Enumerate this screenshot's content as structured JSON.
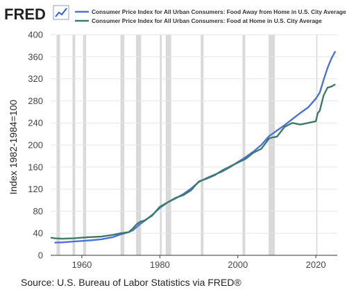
{
  "brand": {
    "logo_text": "FRED",
    "logo_icon": "trend-line-icon"
  },
  "source": "Source: U.S. Bureau of Labor Statistics via FRED®",
  "chart_data": {
    "type": "line",
    "ylabel": "Index 1982-1984=100",
    "xlabel": "",
    "ylim": [
      0,
      400
    ],
    "xlim": [
      1952,
      2025.5
    ],
    "yticks": [
      "0",
      "40",
      "80",
      "120",
      "160",
      "200",
      "240",
      "280",
      "320",
      "360",
      "400"
    ],
    "xticks": [
      "1960",
      "1980",
      "2000",
      "2020"
    ],
    "grid": true,
    "legend_position": "top",
    "recession_shading": "gray vertical bands",
    "recessions": [
      [
        1953.5,
        1954.4
      ],
      [
        1957.6,
        1958.3
      ],
      [
        1960.3,
        1961.1
      ],
      [
        1969.9,
        1970.9
      ],
      [
        1973.9,
        1975.2
      ],
      [
        1980.0,
        1980.5
      ],
      [
        1981.5,
        1982.9
      ],
      [
        1990.5,
        1991.2
      ],
      [
        2001.2,
        2001.9
      ],
      [
        2007.9,
        2009.5
      ],
      [
        2020.1,
        2020.4
      ]
    ],
    "series": [
      {
        "name": "Consumer Price Index for All Urban Consumers: Food Away from Home in U.S. City Average",
        "color": "#4a72d4",
        "x": [
          1953,
          1955,
          1958,
          1960,
          1962,
          1965,
          1968,
          1970,
          1972,
          1973,
          1974,
          1975,
          1976,
          1978,
          1980,
          1982,
          1984,
          1986,
          1988,
          1990,
          1992,
          1994,
          1996,
          1998,
          2000,
          2002,
          2004,
          2006,
          2008,
          2010,
          2012,
          2014,
          2016,
          2018,
          2019,
          2020,
          2021,
          2022,
          2023,
          2024,
          2025
        ],
        "y": [
          23,
          23.5,
          25,
          26,
          27,
          29,
          33,
          38,
          42,
          45,
          51,
          57,
          62,
          73,
          86,
          96,
          103,
          111,
          121,
          133,
          140,
          146,
          152,
          160,
          169,
          178,
          188,
          200,
          216,
          226,
          236,
          247,
          258,
          268,
          276,
          284,
          295,
          318,
          340,
          357,
          370
        ]
      },
      {
        "name": "Consumer Price Index for All Urban Consumers: Food at Home in U.S. City Average",
        "color": "#3d7a69",
        "x": [
          1952,
          1953,
          1955,
          1958,
          1960,
          1962,
          1965,
          1968,
          1970,
          1972,
          1973,
          1974,
          1975,
          1976,
          1978,
          1980,
          1982,
          1984,
          1986,
          1988,
          1990,
          1992,
          1994,
          1996,
          1998,
          2000,
          2002,
          2004,
          2006,
          2008,
          2009,
          2010,
          2012,
          2014,
          2016,
          2018,
          2020,
          2020.5,
          2021,
          2022,
          2023,
          2024,
          2025
        ],
        "y": [
          32,
          31,
          30,
          31,
          32,
          33,
          34,
          37,
          40,
          42,
          48,
          56,
          61,
          63,
          72,
          88,
          96,
          104,
          109,
          118,
          134,
          139,
          145,
          154,
          161,
          168,
          175,
          186,
          193,
          212,
          214,
          215,
          233,
          240,
          237,
          240,
          243,
          258,
          262,
          290,
          304,
          306,
          310
        ]
      }
    ]
  }
}
